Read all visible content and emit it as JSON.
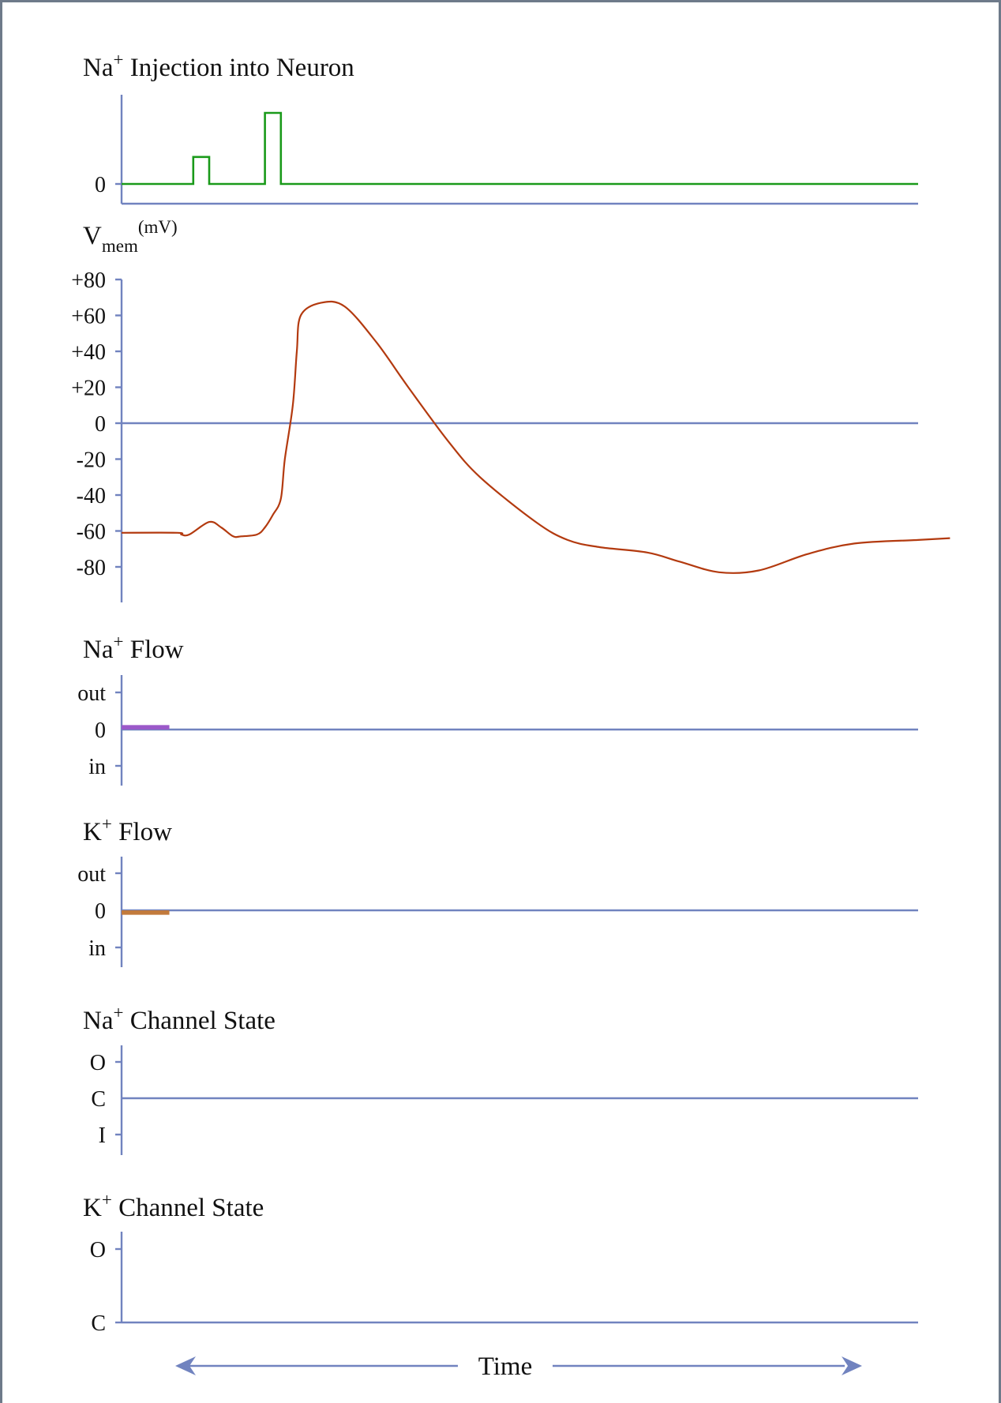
{
  "colors": {
    "axis": "#7183bf",
    "injection": "#1a9a1a",
    "vmem": "#b33a0f",
    "na_flow": "#9b59c9",
    "k_flow": "#c27a3c",
    "frame": "#6e7a8a"
  },
  "panels": {
    "injection": {
      "title_main": "Na",
      "title_sup": "+",
      "title_rest": " Injection into Neuron",
      "zero": "0"
    },
    "vmem": {
      "title_main": "V",
      "title_sub": "mem",
      "title_sup": "(mV)",
      "ticks": [
        "+80",
        "+60",
        "+40",
        "+20",
        "0",
        "-20",
        "-40",
        "-60",
        "-80"
      ]
    },
    "na_flow": {
      "title_main": "Na",
      "title_sup": "+",
      "title_rest": " Flow",
      "ticks": [
        "out",
        "0",
        "in"
      ]
    },
    "k_flow": {
      "title_main": "K",
      "title_sup": "+",
      "title_rest": " Flow",
      "ticks": [
        "out",
        "0",
        "in"
      ]
    },
    "na_channel": {
      "title_main": "Na",
      "title_sup": "+",
      "title_rest": " Channel State",
      "ticks": [
        "O",
        "C",
        "I"
      ]
    },
    "k_channel": {
      "title_main": "K",
      "title_sup": "+",
      "title_rest": " Channel State",
      "ticks": [
        "O",
        "C"
      ]
    }
  },
  "time_label": "Time",
  "chart_data": [
    {
      "type": "line",
      "title": "Na+ Injection into Neuron",
      "xlabel": "Time",
      "ylabel": "",
      "x": [
        0,
        0.09,
        0.09,
        0.11,
        0.11,
        0.18,
        0.18,
        0.2,
        0.2,
        1.0
      ],
      "y": [
        0,
        0,
        0.38,
        0.38,
        0,
        0,
        1.0,
        1.0,
        0,
        0
      ],
      "y_ticks": [
        "0"
      ]
    },
    {
      "type": "line",
      "title": "Vmem(mV)",
      "xlabel": "Time",
      "ylabel": "mV",
      "ylim": [
        -100,
        80
      ],
      "y_ticks": [
        80,
        60,
        40,
        20,
        0,
        -20,
        -40,
        -60,
        -80
      ],
      "x": [
        0,
        0.07,
        0.075,
        0.085,
        0.11,
        0.125,
        0.14,
        0.15,
        0.17,
        0.18,
        0.19,
        0.2,
        0.205,
        0.215,
        0.22,
        0.225,
        0.25,
        0.28,
        0.32,
        0.36,
        0.41,
        0.45,
        0.52,
        0.56,
        0.6,
        0.66,
        0.7,
        0.75,
        0.8,
        0.86,
        0.92,
        1.0,
        1.04
      ],
      "y": [
        -61,
        -61,
        -62,
        -62,
        -55,
        -58,
        -63,
        -63,
        -62,
        -58,
        -51,
        -42,
        -20,
        10,
        40,
        60,
        67,
        65,
        45,
        20,
        -10,
        -30,
        -55,
        -65,
        -69,
        -72,
        -77,
        -83,
        -82,
        -73,
        -67,
        -65,
        -64
      ]
    },
    {
      "type": "bar",
      "title": "Na+ Flow",
      "xlabel": "Time",
      "ylabel": "",
      "y_ticks": [
        "out",
        "0",
        "in"
      ],
      "series": [
        {
          "x_range": [
            0,
            0.06
          ],
          "value": 0.12
        }
      ]
    },
    {
      "type": "bar",
      "title": "K+ Flow",
      "xlabel": "Time",
      "ylabel": "",
      "y_ticks": [
        "out",
        "0",
        "in"
      ],
      "series": [
        {
          "x_range": [
            0,
            0.06
          ],
          "value": -0.12
        }
      ]
    },
    {
      "type": "line",
      "title": "Na+ Channel State",
      "xlabel": "Time",
      "ylabel": "",
      "y_ticks": [
        "O",
        "C",
        "I"
      ],
      "x": [],
      "y": []
    },
    {
      "type": "line",
      "title": "K+ Channel State",
      "xlabel": "Time",
      "ylabel": "",
      "y_ticks": [
        "O",
        "C"
      ],
      "x": [],
      "y": []
    }
  ]
}
